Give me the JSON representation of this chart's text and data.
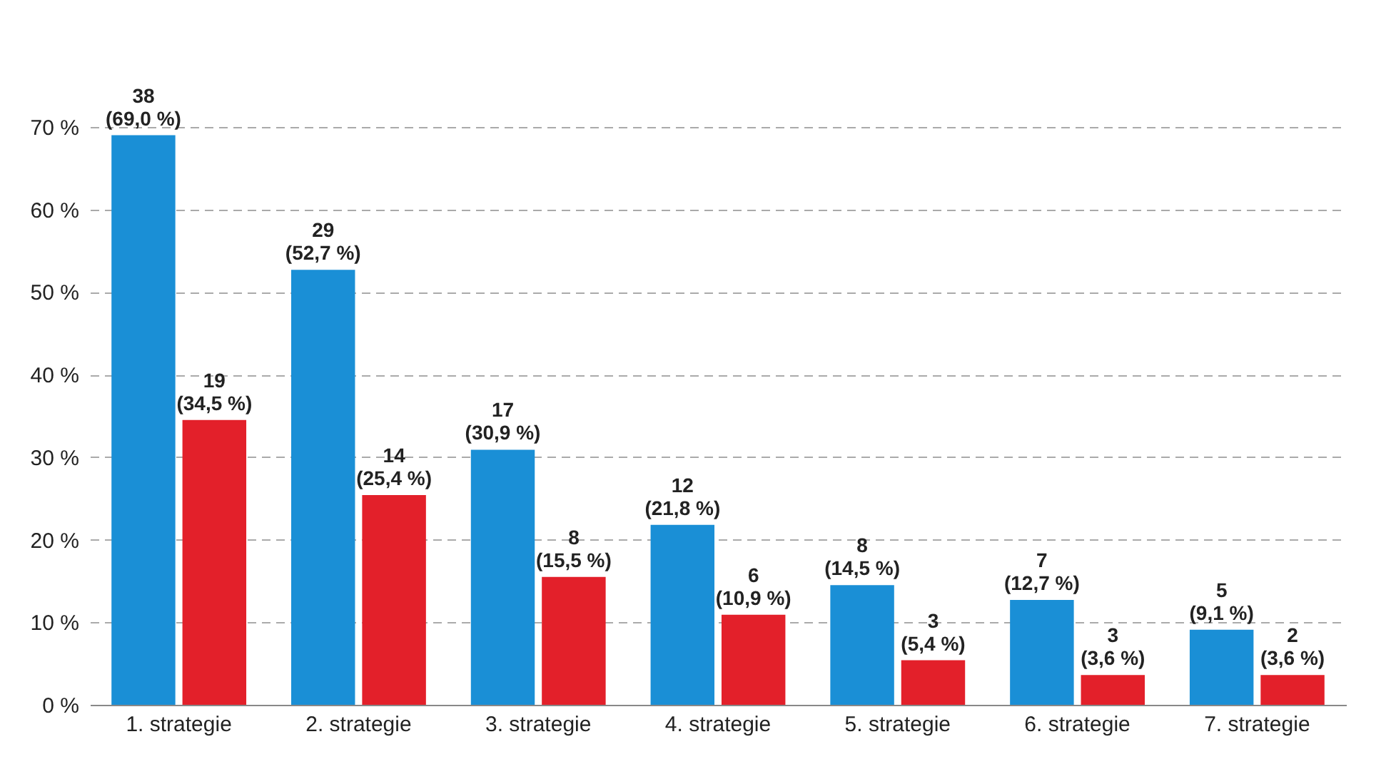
{
  "chart_data": {
    "type": "bar",
    "categories": [
      "1. strategie",
      "2. strategie",
      "3. strategie",
      "4. strategie",
      "5. strategie",
      "6. strategie",
      "7. strategie"
    ],
    "series": [
      {
        "color": "#1a8fd6",
        "values": [
          69.0,
          52.7,
          30.9,
          21.8,
          14.5,
          12.7,
          9.1
        ],
        "value_labels": [
          "38\n(69,0 %)",
          "29\n(52,7 %)",
          "17\n(30,9 %)",
          "12\n(21,8 %)",
          "8\n(14,5 %)",
          "7\n(12,7 %)",
          "5\n(9,1 %)"
        ]
      },
      {
        "color": "#e3202a",
        "values": [
          34.5,
          25.4,
          15.5,
          10.9,
          5.4,
          3.6,
          3.6
        ],
        "value_labels": [
          "19\n(34,5 %)",
          "14\n(25,4 %)",
          "8\n(15,5 %)",
          "6\n(10,9 %)",
          "3\n(5,4 %)",
          "3\n(3,6 %)",
          "2\n(3,6 %)"
        ]
      }
    ],
    "ylim": [
      0,
      70
    ],
    "yticks": [
      {
        "value": 0,
        "label": "0 %"
      },
      {
        "value": 10,
        "label": "10 %"
      },
      {
        "value": 20,
        "label": "20 %"
      },
      {
        "value": 30,
        "label": "30 %"
      },
      {
        "value": 40,
        "label": "40 %"
      },
      {
        "value": 50,
        "label": "50 %"
      },
      {
        "value": 60,
        "label": "60 %"
      },
      {
        "value": 70,
        "label": "70 %"
      }
    ],
    "grid": "y",
    "legend": false
  }
}
